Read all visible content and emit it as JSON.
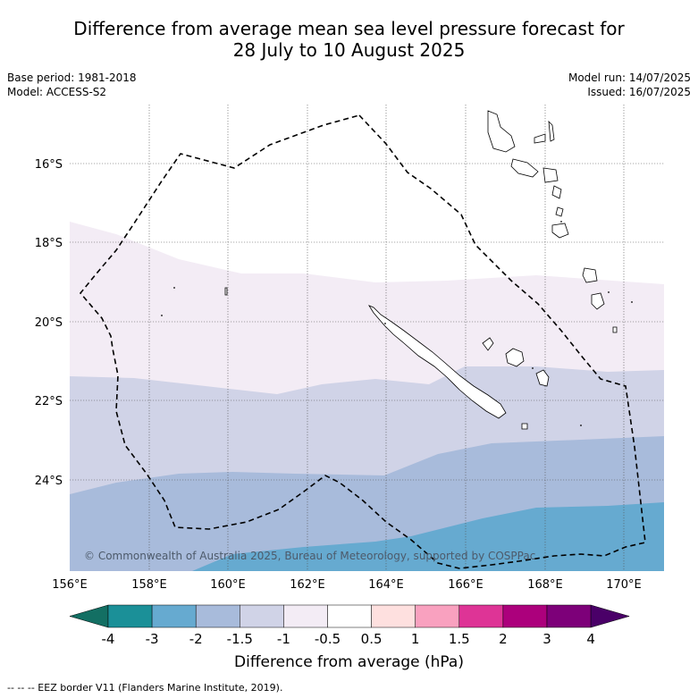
{
  "title": {
    "line1": "Difference from average mean sea level pressure forecast for",
    "line2": "28 July to 10 August 2025"
  },
  "meta": {
    "base_period": "Base period: 1981-2018",
    "model": "Model: ACCESS-S2",
    "model_run": "Model run: 14/07/2025",
    "issued": "Issued: 16/07/2025"
  },
  "map": {
    "lat_labels": [
      "16°S",
      "18°S",
      "20°S",
      "22°S",
      "24°S"
    ],
    "lon_labels": [
      "156°E",
      "158°E",
      "160°E",
      "162°E",
      "164°E",
      "166°E",
      "168°E",
      "170°E"
    ],
    "copyright": "© Commonwealth of Australia 2025, Bureau of Meteorology, supported by COSPPac"
  },
  "colorbar": {
    "tick_labels": [
      "-4",
      "-3",
      "-2",
      "-1.5",
      "-1",
      "-0.5",
      "0.5",
      "1",
      "1.5",
      "2",
      "3",
      "4"
    ],
    "colors": [
      "#136f63",
      "#1b9098",
      "#66aad0",
      "#a8bbdb",
      "#d0d3e7",
      "#f3ecf5",
      "#ffffff",
      "#fee0df",
      "#f9a1bf",
      "#de3496",
      "#ac007c",
      "#7d0079",
      "#4a0068"
    ],
    "label": "Difference from average (hPa)"
  },
  "footnote": "--  --  -- EEZ border V11 (Flanders Marine Institute, 2019)."
}
